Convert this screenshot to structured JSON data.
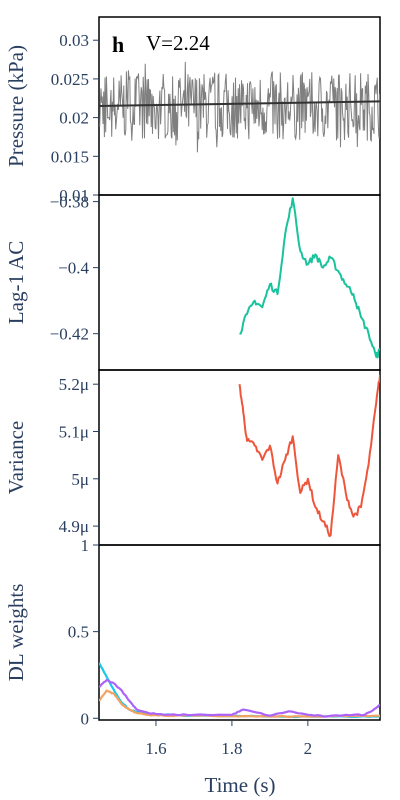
{
  "chart_data": [
    {
      "type": "line",
      "panel": "h",
      "annotation": "V=2.24",
      "ylabel": "Pressure (kPa)",
      "ylim": [
        0.01,
        0.033
      ],
      "yticks": [
        0.01,
        0.015,
        0.02,
        0.025,
        0.03
      ],
      "ytick_labels": [
        "0.01",
        "0.015",
        "0.02",
        "0.025",
        "0.03"
      ],
      "xlim": [
        1.45,
        2.19
      ],
      "series": [
        {
          "role": "raw",
          "color": "#7f7f7f",
          "mean": 0.0215,
          "noise_amplitude": 0.0045,
          "noise_max": 0.006
        },
        {
          "role": "smoothed",
          "color": "#333333",
          "x": [
            1.45,
            2.19
          ],
          "y": [
            0.0215,
            0.0221
          ]
        }
      ]
    },
    {
      "type": "line",
      "ylabel": "Lag-1 AC",
      "ylim": [
        -0.431,
        -0.378
      ],
      "yticks": [
        -0.38,
        -0.4,
        -0.42
      ],
      "ytick_labels": [
        "−0.38",
        "−0.4",
        "−0.42"
      ],
      "xlim": [
        1.45,
        2.19
      ],
      "series": [
        {
          "color": "#19c39c",
          "x": [
            1.82,
            1.84,
            1.86,
            1.88,
            1.9,
            1.92,
            1.94,
            1.96,
            1.98,
            2.0,
            2.02,
            2.04,
            2.06,
            2.08,
            2.1,
            2.12,
            2.14,
            2.16,
            2.18,
            2.19
          ],
          "y": [
            -0.42,
            -0.414,
            -0.41,
            -0.412,
            -0.405,
            -0.408,
            -0.39,
            -0.379,
            -0.395,
            -0.399,
            -0.396,
            -0.4,
            -0.397,
            -0.401,
            -0.405,
            -0.408,
            -0.415,
            -0.42,
            -0.427,
            -0.425
          ]
        }
      ]
    },
    {
      "type": "line",
      "ylabel": "Variance",
      "ylim": [
        4.86,
        5.23
      ],
      "yticks": [
        4.9,
        5.0,
        5.1,
        5.2
      ],
      "ytick_labels": [
        "4.9μ",
        "5μ",
        "5.1μ",
        "5.2μ"
      ],
      "xlim": [
        1.45,
        2.19
      ],
      "series": [
        {
          "color": "#ef553b",
          "x": [
            1.82,
            1.83,
            1.84,
            1.86,
            1.88,
            1.9,
            1.92,
            1.94,
            1.96,
            1.98,
            2.0,
            2.02,
            2.04,
            2.06,
            2.08,
            2.1,
            2.12,
            2.14,
            2.16,
            2.18,
            2.19
          ],
          "y": [
            5.2,
            5.14,
            5.08,
            5.07,
            5.04,
            5.07,
            4.99,
            5.04,
            5.09,
            4.97,
            5.0,
            4.94,
            4.91,
            4.88,
            5.05,
            4.97,
            4.92,
            4.94,
            5.03,
            5.16,
            5.22
          ]
        }
      ]
    },
    {
      "type": "line",
      "ylabel": "DL weights",
      "xlabel": "Time (s)",
      "ylim": [
        -0.01,
        1.0
      ],
      "yticks": [
        0,
        0.5,
        1
      ],
      "ytick_labels": [
        "0",
        "0.5",
        "1"
      ],
      "xlim": [
        1.45,
        2.19
      ],
      "xticks": [
        1.6,
        1.8,
        2.0
      ],
      "xtick_labels": [
        "1.6",
        "1.8",
        "2"
      ],
      "series": [
        {
          "color": "#1cc7ea",
          "x": [
            1.45,
            1.47,
            1.49,
            1.51,
            1.53,
            1.55,
            1.58,
            1.62,
            1.7,
            1.8,
            1.9,
            2.0,
            2.1,
            2.19
          ],
          "y": [
            0.32,
            0.24,
            0.16,
            0.09,
            0.05,
            0.035,
            0.025,
            0.02,
            0.015,
            0.012,
            0.01,
            0.01,
            0.01,
            0.01
          ]
        },
        {
          "color": "#f4a261",
          "x": [
            1.45,
            1.47,
            1.49,
            1.51,
            1.53,
            1.55,
            1.58,
            1.62,
            1.7,
            1.8,
            1.9,
            2.0,
            2.1,
            2.19
          ],
          "y": [
            0.1,
            0.16,
            0.14,
            0.08,
            0.05,
            0.03,
            0.02,
            0.015,
            0.015,
            0.012,
            0.01,
            0.01,
            0.012,
            0.015
          ]
        },
        {
          "color": "#ab63fa",
          "x": [
            1.45,
            1.47,
            1.49,
            1.51,
            1.53,
            1.55,
            1.58,
            1.62,
            1.7,
            1.8,
            1.83,
            1.9,
            1.95,
            2.0,
            2.05,
            2.1,
            2.15,
            2.18,
            2.19
          ],
          "y": [
            0.18,
            0.22,
            0.2,
            0.16,
            0.1,
            0.05,
            0.03,
            0.02,
            0.02,
            0.02,
            0.05,
            0.015,
            0.04,
            0.02,
            0.01,
            0.02,
            0.02,
            0.06,
            0.08
          ]
        }
      ]
    }
  ]
}
